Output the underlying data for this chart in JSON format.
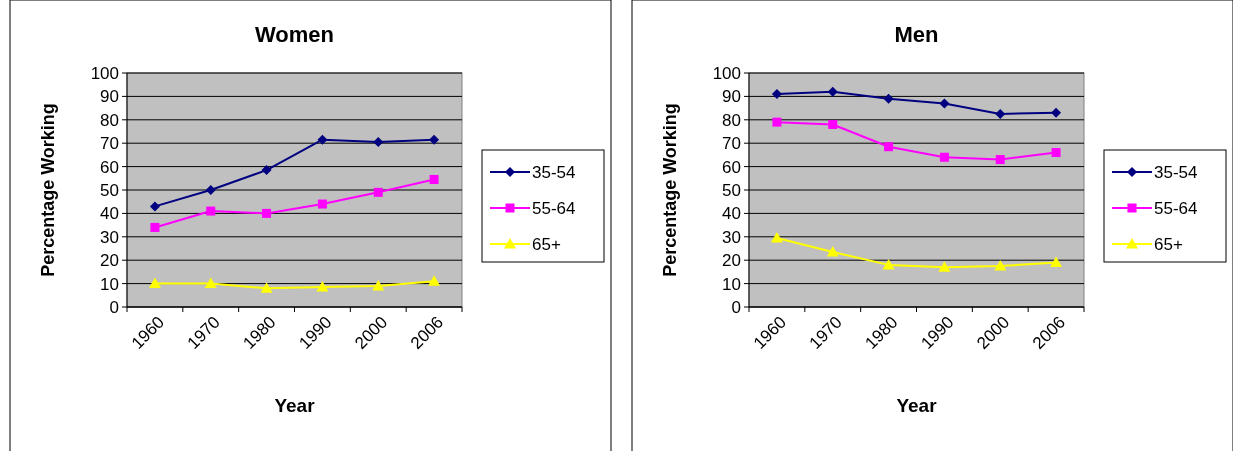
{
  "chart_data": [
    {
      "type": "line",
      "title": "Women",
      "xlabel": "Year",
      "ylabel": "Percentage Working",
      "categories": [
        "1960",
        "1970",
        "1980",
        "1990",
        "2000",
        "2006"
      ],
      "ylim": [
        0,
        100
      ],
      "yticks": [
        0,
        10,
        20,
        30,
        40,
        50,
        60,
        70,
        80,
        90,
        100
      ],
      "grid": "y",
      "legend": "right",
      "series": [
        {
          "name": "35-54",
          "color": "#000080",
          "marker": "diamond",
          "values": [
            43,
            50,
            58.5,
            71.5,
            70.5,
            71.5
          ]
        },
        {
          "name": "55-64",
          "color": "#ff00ff",
          "marker": "square",
          "values": [
            34,
            41,
            40,
            44,
            49,
            54.5
          ]
        },
        {
          "name": "65+",
          "color": "#ffff00",
          "marker": "triangle",
          "values": [
            10,
            10,
            8,
            8.5,
            9,
            11
          ]
        }
      ]
    },
    {
      "type": "line",
      "title": "Men",
      "xlabel": "Year",
      "ylabel": "Percentage Working",
      "categories": [
        "1960",
        "1970",
        "1980",
        "1990",
        "2000",
        "2006"
      ],
      "ylim": [
        0,
        100
      ],
      "yticks": [
        0,
        10,
        20,
        30,
        40,
        50,
        60,
        70,
        80,
        90,
        100
      ],
      "grid": "y",
      "legend": "right",
      "series": [
        {
          "name": "35-54",
          "color": "#000080",
          "marker": "diamond",
          "values": [
            91,
            92,
            89,
            87,
            82.5,
            83
          ]
        },
        {
          "name": "55-64",
          "color": "#ff00ff",
          "marker": "square",
          "values": [
            79,
            78,
            68.5,
            64,
            63,
            66
          ]
        },
        {
          "name": "65+",
          "color": "#ffff00",
          "marker": "triangle",
          "values": [
            29.5,
            23.5,
            18,
            17,
            17.5,
            19
          ]
        }
      ]
    }
  ]
}
